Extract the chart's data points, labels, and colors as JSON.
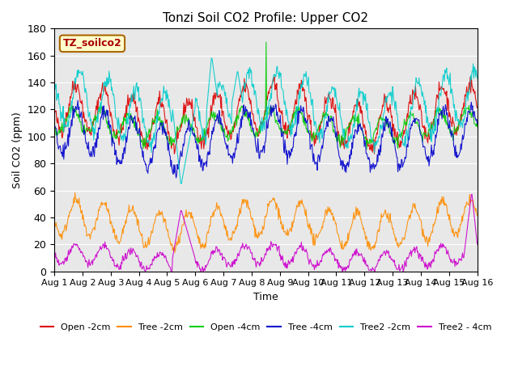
{
  "title": "Tonzi Soil CO2 Profile: Upper CO2",
  "ylabel": "Soil CO2 (ppm)",
  "xlabel": "Time",
  "legend_label": "TZ_soilco2",
  "ylim": [
    0,
    180
  ],
  "yticks": [
    0,
    20,
    40,
    60,
    80,
    100,
    120,
    140,
    160,
    180
  ],
  "n_days": 15,
  "points_per_day": 48,
  "series": {
    "Open_2cm": {
      "color": "#dd0000",
      "label": "Open -2cm"
    },
    "Tree_2cm": {
      "color": "#ff8c00",
      "label": "Tree -2cm"
    },
    "Open_4cm": {
      "color": "#00cc00",
      "label": "Open -4cm"
    },
    "Tree_4cm": {
      "color": "#0000cc",
      "label": "Tree -4cm"
    },
    "Tree2_2cm": {
      "color": "#00cccc",
      "label": "Tree2 -2cm"
    },
    "Tree2_4cm": {
      "color": "#cc00cc",
      "label": "Tree2 - 4cm"
    }
  },
  "background_color": "#e8e8e8",
  "title_fontsize": 11,
  "axis_fontsize": 9,
  "legend_fontsize": 9
}
